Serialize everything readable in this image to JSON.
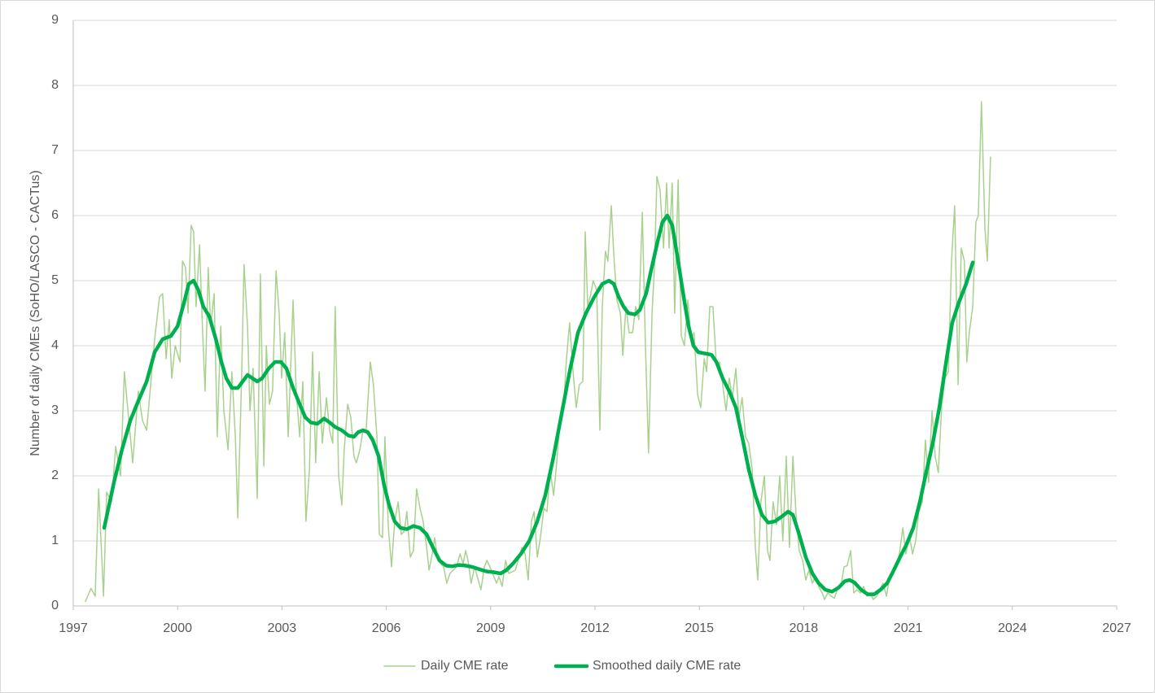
{
  "chart_data": {
    "type": "line",
    "ylabel": "Number of daily CMEs (SoHO/LASCO - CACTus)",
    "xlim": [
      1997,
      2027
    ],
    "xticks": [
      1997,
      2000,
      2003,
      2006,
      2009,
      2012,
      2015,
      2018,
      2021,
      2024,
      2027
    ],
    "ylim": [
      0,
      9
    ],
    "yticks": [
      0,
      1,
      2,
      3,
      4,
      5,
      6,
      7,
      8,
      9
    ],
    "grid": true,
    "legend": "bottom",
    "series": [
      {
        "name": "Daily CME rate",
        "color": "#a9d18e",
        "width": 1.5,
        "x": [
          1997.35,
          1997.51,
          1997.63,
          1997.73,
          1997.87,
          1997.96,
          1998.1,
          1998.22,
          1998.36,
          1998.47,
          1998.71,
          1998.87,
          1998.99,
          1999.11,
          1999.34,
          1999.48,
          1999.57,
          1999.67,
          1999.76,
          1999.83,
          1999.93,
          2000.07,
          2000.14,
          2000.23,
          2000.3,
          2000.39,
          2000.46,
          2000.53,
          2000.63,
          2000.72,
          2000.79,
          2000.88,
          2000.95,
          2001.05,
          2001.14,
          2001.24,
          2001.33,
          2001.45,
          2001.56,
          2001.66,
          2001.73,
          2001.84,
          2001.91,
          2002.01,
          2002.08,
          2002.17,
          2002.29,
          2002.38,
          2002.48,
          2002.55,
          2002.64,
          2002.73,
          2002.83,
          2002.92,
          2002.99,
          2003.08,
          2003.18,
          2003.32,
          2003.41,
          2003.51,
          2003.6,
          2003.69,
          2003.79,
          2003.88,
          2003.97,
          2004.07,
          2004.16,
          2004.28,
          2004.37,
          2004.46,
          2004.53,
          2004.63,
          2004.72,
          2004.79,
          2004.89,
          2004.98,
          2005.07,
          2005.14,
          2005.24,
          2005.33,
          2005.42,
          2005.54,
          2005.63,
          2005.73,
          2005.8,
          2005.89,
          2005.96,
          2006.06,
          2006.15,
          2006.24,
          2006.34,
          2006.43,
          2006.52,
          2006.59,
          2006.69,
          2006.78,
          2006.87,
          2006.97,
          2007.06,
          2007.16,
          2007.23,
          2007.32,
          2007.39,
          2007.48,
          2007.65,
          2007.74,
          2007.83,
          2008.02,
          2008.12,
          2008.21,
          2008.28,
          2008.35,
          2008.44,
          2008.54,
          2008.72,
          2008.82,
          2008.89,
          2008.98,
          2009.17,
          2009.24,
          2009.33,
          2009.43,
          2009.52,
          2009.71,
          2009.9,
          2009.99,
          2010.08,
          2010.17,
          2010.25,
          2010.34,
          2010.43,
          2010.53,
          2010.62,
          2010.71,
          2010.81,
          2010.9,
          2010.99,
          2011.09,
          2011.18,
          2011.27,
          2011.37,
          2011.46,
          2011.55,
          2011.65,
          2011.72,
          2011.79,
          2011.88,
          2011.95,
          2012.05,
          2012.14,
          2012.21,
          2012.3,
          2012.37,
          2012.47,
          2012.54,
          2012.63,
          2012.73,
          2012.8,
          2012.89,
          2012.98,
          2013.08,
          2013.17,
          2013.26,
          2013.36,
          2013.45,
          2013.54,
          2013.64,
          2013.71,
          2013.78,
          2013.87,
          2013.97,
          2014.06,
          2014.13,
          2014.22,
          2014.29,
          2014.39,
          2014.48,
          2014.57,
          2014.67,
          2014.76,
          2014.85,
          2014.95,
          2015.04,
          2015.14,
          2015.21,
          2015.3,
          2015.39,
          2015.49,
          2015.58,
          2015.67,
          2015.77,
          2015.86,
          2015.95,
          2016.05,
          2016.14,
          2016.23,
          2016.33,
          2016.42,
          2016.52,
          2016.61,
          2016.68,
          2016.77,
          2016.87,
          2016.96,
          2017.03,
          2017.12,
          2017.22,
          2017.31,
          2017.4,
          2017.5,
          2017.59,
          2017.69,
          2017.78,
          2017.87,
          2017.97,
          2018.06,
          2018.15,
          2018.25,
          2018.34,
          2018.43,
          2018.53,
          2018.6,
          2018.69,
          2018.79,
          2018.88,
          2018.97,
          2019.07,
          2019.16,
          2019.25,
          2019.35,
          2019.44,
          2019.53,
          2019.63,
          2019.72,
          2019.82,
          2019.91,
          2020.0,
          2020.1,
          2020.19,
          2020.28,
          2020.38,
          2020.47,
          2020.56,
          2020.66,
          2020.75,
          2020.85,
          2020.94,
          2021.03,
          2021.13,
          2021.22,
          2021.31,
          2021.41,
          2021.5,
          2021.59,
          2021.69,
          2021.78,
          2021.87,
          2021.97,
          2022.06,
          2022.16,
          2022.25,
          2022.34,
          2022.44,
          2022.53,
          2022.62,
          2022.69,
          2022.76,
          2022.86,
          2022.95,
          2023.02,
          2023.11,
          2023.21,
          2023.28,
          2023.37
        ],
        "values": [
          0.07,
          0.27,
          0.15,
          1.8,
          0.15,
          1.75,
          1.6,
          2.45,
          2.0,
          3.6,
          2.2,
          3.3,
          2.85,
          2.7,
          4.1,
          4.75,
          4.8,
          3.8,
          4.4,
          3.5,
          4.0,
          3.75,
          5.3,
          5.2,
          4.5,
          5.85,
          5.75,
          4.6,
          5.55,
          4.2,
          3.3,
          5.2,
          4.3,
          4.8,
          2.6,
          4.3,
          3.0,
          2.4,
          3.6,
          2.6,
          1.35,
          3.5,
          5.25,
          4.3,
          3.0,
          3.65,
          1.65,
          5.1,
          2.15,
          4.0,
          3.1,
          3.3,
          5.15,
          4.5,
          3.5,
          4.2,
          2.6,
          4.7,
          3.3,
          2.6,
          3.45,
          1.3,
          2.1,
          3.9,
          2.2,
          3.6,
          2.5,
          3.2,
          2.7,
          2.5,
          4.6,
          2.0,
          1.55,
          2.4,
          3.1,
          2.9,
          2.3,
          2.2,
          2.4,
          2.7,
          2.7,
          3.75,
          3.4,
          2.6,
          1.1,
          1.05,
          2.6,
          1.2,
          0.6,
          1.3,
          1.6,
          1.1,
          1.15,
          1.45,
          0.75,
          0.85,
          1.8,
          1.5,
          1.3,
          0.9,
          0.55,
          0.8,
          1.05,
          0.7,
          0.6,
          0.35,
          0.5,
          0.6,
          0.8,
          0.65,
          0.85,
          0.7,
          0.35,
          0.6,
          0.25,
          0.6,
          0.7,
          0.6,
          0.35,
          0.45,
          0.3,
          0.7,
          0.5,
          0.55,
          0.9,
          0.8,
          0.4,
          1.3,
          1.45,
          0.75,
          1.05,
          1.5,
          1.45,
          2.1,
          1.7,
          2.2,
          2.85,
          3.0,
          3.8,
          4.35,
          3.6,
          3.05,
          3.4,
          3.45,
          5.75,
          4.6,
          4.8,
          5.0,
          4.85,
          2.7,
          4.6,
          5.45,
          5.3,
          6.15,
          5.4,
          4.7,
          4.5,
          3.85,
          4.6,
          4.2,
          4.2,
          4.6,
          4.4,
          6.05,
          4.0,
          2.35,
          4.5,
          5.2,
          6.6,
          6.4,
          5.5,
          6.5,
          5.5,
          6.5,
          4.5,
          6.55,
          4.15,
          4.0,
          4.7,
          4.1,
          4.2,
          3.25,
          3.05,
          3.8,
          3.6,
          4.6,
          4.6,
          3.7,
          3.75,
          3.4,
          3.0,
          3.5,
          3.2,
          3.65,
          2.9,
          3.2,
          2.6,
          2.5,
          2.1,
          0.9,
          0.4,
          1.6,
          2.0,
          0.85,
          0.7,
          1.6,
          1.25,
          2.0,
          1.0,
          2.3,
          0.9,
          2.3,
          1.4,
          0.85,
          0.7,
          0.4,
          0.55,
          0.35,
          0.45,
          0.3,
          0.2,
          0.1,
          0.2,
          0.15,
          0.12,
          0.25,
          0.3,
          0.6,
          0.62,
          0.85,
          0.2,
          0.25,
          0.2,
          0.3,
          0.15,
          0.2,
          0.1,
          0.15,
          0.25,
          0.35,
          0.15,
          0.45,
          0.5,
          0.6,
          0.8,
          1.2,
          0.8,
          1.1,
          0.8,
          1.0,
          1.45,
          1.6,
          2.55,
          1.9,
          3.0,
          2.3,
          2.05,
          3.1,
          3.5,
          3.6,
          5.3,
          6.15,
          3.4,
          5.5,
          5.3,
          3.75,
          4.2,
          4.6,
          5.9,
          6.0,
          7.75,
          5.8,
          5.3,
          6.9
        ]
      },
      {
        "name": "Smoothed daily CME rate",
        "color": "#00b050",
        "width": 4.5,
        "x": [
          1997.89,
          1998.17,
          1998.4,
          1998.64,
          1998.87,
          1999.11,
          1999.34,
          1999.57,
          1999.81,
          2000.0,
          2000.18,
          2000.32,
          2000.46,
          2000.6,
          2000.74,
          2000.91,
          2001.1,
          2001.26,
          2001.4,
          2001.56,
          2001.73,
          2001.87,
          2002.01,
          2002.15,
          2002.29,
          2002.43,
          2002.62,
          2002.8,
          2002.97,
          2003.13,
          2003.32,
          2003.51,
          2003.67,
          2003.83,
          2004.02,
          2004.21,
          2004.37,
          2004.53,
          2004.72,
          2004.91,
          2005.07,
          2005.19,
          2005.33,
          2005.47,
          2005.61,
          2005.78,
          2005.94,
          2006.08,
          2006.24,
          2006.41,
          2006.59,
          2006.78,
          2006.97,
          2007.16,
          2007.34,
          2007.53,
          2007.72,
          2007.9,
          2008.09,
          2008.28,
          2008.47,
          2008.7,
          2008.89,
          2009.07,
          2009.29,
          2009.45,
          2009.64,
          2009.87,
          2010.11,
          2010.34,
          2010.57,
          2010.81,
          2011.04,
          2011.27,
          2011.51,
          2011.74,
          2011.98,
          2012.21,
          2012.4,
          2012.54,
          2012.68,
          2012.82,
          2012.96,
          2013.15,
          2013.29,
          2013.47,
          2013.61,
          2013.8,
          2013.94,
          2014.08,
          2014.22,
          2014.36,
          2014.55,
          2014.69,
          2014.83,
          2014.97,
          2015.16,
          2015.35,
          2015.49,
          2015.67,
          2015.86,
          2016.05,
          2016.23,
          2016.42,
          2016.61,
          2016.8,
          2016.98,
          2017.17,
          2017.36,
          2017.55,
          2017.69,
          2017.87,
          2018.06,
          2018.25,
          2018.43,
          2018.62,
          2018.81,
          2019.0,
          2019.18,
          2019.32,
          2019.46,
          2019.65,
          2019.84,
          2020.03,
          2020.21,
          2020.4,
          2020.59,
          2020.77,
          2020.96,
          2021.15,
          2021.34,
          2021.52,
          2021.71,
          2021.9,
          2022.08,
          2022.27,
          2022.45,
          2022.67,
          2022.86
        ],
        "values": [
          1.2,
          1.9,
          2.4,
          2.85,
          3.15,
          3.45,
          3.9,
          4.1,
          4.15,
          4.3,
          4.65,
          4.95,
          5.0,
          4.85,
          4.6,
          4.45,
          4.1,
          3.75,
          3.5,
          3.35,
          3.35,
          3.45,
          3.55,
          3.5,
          3.45,
          3.5,
          3.65,
          3.75,
          3.75,
          3.65,
          3.35,
          3.1,
          2.9,
          2.82,
          2.8,
          2.88,
          2.82,
          2.75,
          2.7,
          2.62,
          2.6,
          2.67,
          2.7,
          2.67,
          2.55,
          2.3,
          1.85,
          1.55,
          1.3,
          1.2,
          1.18,
          1.23,
          1.2,
          1.1,
          0.9,
          0.7,
          0.62,
          0.61,
          0.63,
          0.62,
          0.6,
          0.56,
          0.53,
          0.52,
          0.5,
          0.55,
          0.65,
          0.8,
          1.0,
          1.3,
          1.7,
          2.3,
          2.95,
          3.6,
          4.2,
          4.5,
          4.75,
          4.95,
          5.0,
          4.95,
          4.75,
          4.6,
          4.5,
          4.48,
          4.55,
          4.8,
          5.15,
          5.6,
          5.9,
          6.0,
          5.85,
          5.4,
          4.75,
          4.3,
          4.0,
          3.9,
          3.88,
          3.86,
          3.75,
          3.5,
          3.3,
          3.05,
          2.6,
          2.1,
          1.7,
          1.4,
          1.28,
          1.3,
          1.37,
          1.45,
          1.4,
          1.1,
          0.75,
          0.5,
          0.35,
          0.25,
          0.22,
          0.28,
          0.38,
          0.4,
          0.36,
          0.25,
          0.18,
          0.18,
          0.25,
          0.35,
          0.55,
          0.75,
          0.95,
          1.2,
          1.6,
          2.05,
          2.5,
          3.05,
          3.7,
          4.35,
          4.65,
          4.95,
          5.28
        ]
      }
    ]
  }
}
